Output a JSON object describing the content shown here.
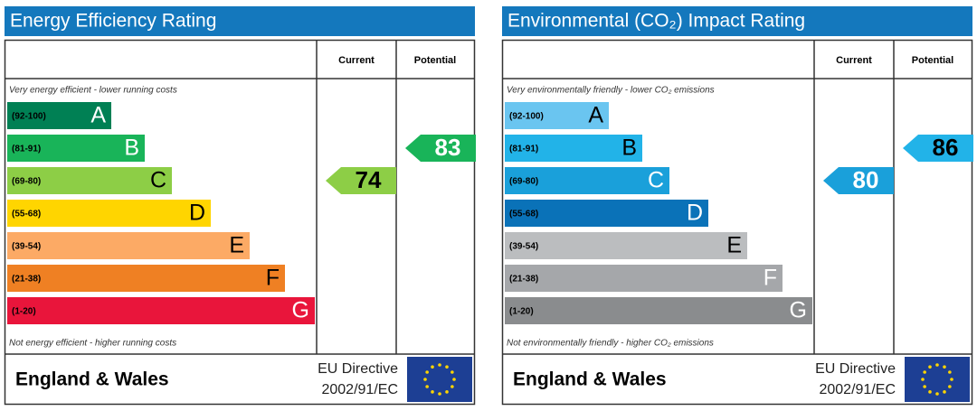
{
  "panels": [
    {
      "title": "Energy Efficiency Rating",
      "headers": [
        "Current",
        "Potential"
      ],
      "top_note": "Very energy efficient - lower running costs",
      "bottom_note": "Not energy efficient - higher running costs",
      "bands": [
        {
          "range": "(92-100)",
          "letter": "A",
          "color": "#008054",
          "text_color": "#ffffff"
        },
        {
          "range": "(81-91)",
          "letter": "B",
          "color": "#19b459",
          "text_color": "#ffffff"
        },
        {
          "range": "(69-80)",
          "letter": "C",
          "color": "#8dce46",
          "text_color": "#000000"
        },
        {
          "range": "(55-68)",
          "letter": "D",
          "color": "#ffd500",
          "text_color": "#000000"
        },
        {
          "range": "(39-54)",
          "letter": "E",
          "color": "#fcaa65",
          "text_color": "#000000"
        },
        {
          "range": "(21-38)",
          "letter": "F",
          "color": "#ef8023",
          "text_color": "#000000"
        },
        {
          "range": "(1-20)",
          "letter": "G",
          "color": "#e9153b",
          "text_color": "#ffffff"
        }
      ],
      "current": 74,
      "potential": 83,
      "region": "England & Wales",
      "directive": [
        "EU Directive",
        "2002/91/EC"
      ]
    },
    {
      "title": "Environmental (CO₂) Impact Rating",
      "headers": [
        "Current",
        "Potential"
      ],
      "top_note": "Very environmentally friendly - lower CO₂ emissions",
      "bottom_note": "Not environmentally friendly - higher CO₂ emissions",
      "bands": [
        {
          "range": "(92-100)",
          "letter": "A",
          "color": "#6ac5f0",
          "text_color": "#000000"
        },
        {
          "range": "(81-91)",
          "letter": "B",
          "color": "#22b3e8",
          "text_color": "#000000"
        },
        {
          "range": "(69-80)",
          "letter": "C",
          "color": "#1aa0da",
          "text_color": "#ffffff"
        },
        {
          "range": "(55-68)",
          "letter": "D",
          "color": "#0a72b8",
          "text_color": "#ffffff"
        },
        {
          "range": "(39-54)",
          "letter": "E",
          "color": "#bbbdbf",
          "text_color": "#000000"
        },
        {
          "range": "(21-38)",
          "letter": "F",
          "color": "#a5a7aa",
          "text_color": "#ffffff"
        },
        {
          "range": "(1-20)",
          "letter": "G",
          "color": "#8a8c8e",
          "text_color": "#ffffff"
        }
      ],
      "current": 80,
      "potential": 86,
      "region": "England & Wales",
      "directive": [
        "EU Directive",
        "2002/91/EC"
      ]
    }
  ]
}
